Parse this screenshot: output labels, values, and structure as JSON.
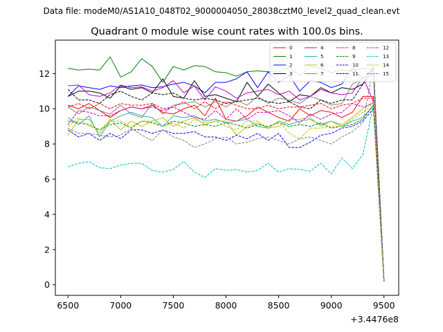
{
  "figure": {
    "suptitle": "Data file: modeM0/AS1A10_048T02_9000004050_28038cztM0_level2_quad_clean.evt"
  },
  "chart_data": {
    "type": "line",
    "title": "Quadrant 0 module wise count rates with 100.0s bins.",
    "xlabel": "",
    "ylabel": "",
    "x_offset_label": "+3.4476e8",
    "x": [
      6500,
      6600,
      6700,
      6800,
      6900,
      7000,
      7100,
      7200,
      7300,
      7400,
      7500,
      7600,
      7700,
      7800,
      7900,
      8000,
      8100,
      8200,
      8300,
      8400,
      8500,
      8600,
      8700,
      8800,
      8900,
      9000,
      9100,
      9200,
      9300,
      9400,
      9500
    ],
    "xlim": [
      6380,
      9640
    ],
    "ylim": [
      -0.6,
      13.9
    ],
    "xticks": [
      6500,
      7000,
      7500,
      8000,
      8500,
      9000,
      9500
    ],
    "yticks": [
      0,
      2,
      4,
      6,
      8,
      10,
      12
    ],
    "grid": false,
    "legend_position": "top-right",
    "series": [
      {
        "name": "0",
        "color": "#ff0000",
        "style": "solid",
        "values": [
          10.2,
          10.0,
          10.3,
          9.9,
          9.5,
          9.9,
          10.1,
          10.0,
          10.2,
          9.8,
          9.7,
          10.0,
          10.2,
          9.6,
          10.6,
          9.4,
          9.3,
          9.6,
          10.1,
          9.8,
          9.5,
          9.3,
          10.0,
          9.6,
          9.9,
          9.8,
          9.5,
          9.8,
          10.7,
          10.7,
          0.2
        ]
      },
      {
        "name": "1",
        "color": "#008000",
        "style": "solid",
        "values": [
          12.3,
          12.2,
          12.25,
          12.2,
          12.95,
          11.8,
          12.1,
          12.85,
          12.4,
          11.5,
          12.4,
          12.2,
          12.45,
          12.4,
          12.1,
          12.05,
          11.85,
          12.1,
          12.15,
          12.1,
          12.1,
          12.35,
          11.9,
          12.4,
          12.3,
          12.05,
          12.2,
          12.15,
          12.3,
          12.2,
          0.2
        ]
      },
      {
        "name": "2",
        "color": "#0000ff",
        "style": "solid",
        "values": [
          10.7,
          11.3,
          11.2,
          11.1,
          11.3,
          11.2,
          11.3,
          11.35,
          11.2,
          11.25,
          11.4,
          11.5,
          11.3,
          10.9,
          11.5,
          11.5,
          11.7,
          12.1,
          11.2,
          12.1,
          11.5,
          11.9,
          11.0,
          11.6,
          11.5,
          11.2,
          11.4,
          12.3,
          11.7,
          12.3,
          0.3
        ]
      },
      {
        "name": "3",
        "color": "#000000",
        "style": "solid",
        "values": [
          10.7,
          11.0,
          11.0,
          10.9,
          10.6,
          11.3,
          11.1,
          11.2,
          10.9,
          11.7,
          10.7,
          10.6,
          11.6,
          10.7,
          10.8,
          10.6,
          10.4,
          11.5,
          10.7,
          11.4,
          10.9,
          10.4,
          10.8,
          10.7,
          11.2,
          10.9,
          11.2,
          11.1,
          11.4,
          12.4,
          0.3
        ]
      },
      {
        "name": "4",
        "color": "#bf00bf",
        "style": "solid",
        "values": [
          11.3,
          11.35,
          10.8,
          10.7,
          10.9,
          11.35,
          11.2,
          11.25,
          11.0,
          11.2,
          11.6,
          10.9,
          11.3,
          10.5,
          11.25,
          11.0,
          10.6,
          10.9,
          11.0,
          11.1,
          10.8,
          11.0,
          10.5,
          10.7,
          11.1,
          10.9,
          10.8,
          10.9,
          11.8,
          10.4,
          0.3
        ]
      },
      {
        "name": "5",
        "color": "#20b2aa",
        "style": "solid",
        "values": [
          9.5,
          9.1,
          9.6,
          8.4,
          9.3,
          9.6,
          9.8,
          9.6,
          9.5,
          9.0,
          9.6,
          9.5,
          9.6,
          9.3,
          9.4,
          9.2,
          9.3,
          9.4,
          9.0,
          8.9,
          9.3,
          9.1,
          9.3,
          9.4,
          9.1,
          9.3,
          9.0,
          9.3,
          9.5,
          10.2,
          0.3
        ]
      },
      {
        "name": "6",
        "color": "#bfbf00",
        "style": "solid",
        "values": [
          8.5,
          9.4,
          9.4,
          8.6,
          9.4,
          8.8,
          9.3,
          9.0,
          9.3,
          9.5,
          9.0,
          9.3,
          9.5,
          9.1,
          9.3,
          9.3,
          8.5,
          9.0,
          9.2,
          8.9,
          9.0,
          9.4,
          9.4,
          9.5,
          9.0,
          9.3,
          9.1,
          9.5,
          10.0,
          10.4,
          0.3
        ]
      },
      {
        "name": "7",
        "color": "#808080",
        "style": "solid",
        "values": [
          10.1,
          9.7,
          10.1,
          9.9,
          9.7,
          10.2,
          9.7,
          9.5,
          10.3,
          9.7,
          10.2,
          10.3,
          10.4,
          10.1,
          10.4,
          10.1,
          10.5,
          10.2,
          10.7,
          10.3,
          10.6,
          10.5,
          10.3,
          10.7,
          10.5,
          10.2,
          10.3,
          11.4,
          11.7,
          12.2,
          0.3
        ]
      },
      {
        "name": "8",
        "color": "#ff0000",
        "style": "dashed",
        "values": [
          10.1,
          10.3,
          10.0,
          10.3,
          10.0,
          10.3,
          10.2,
          10.2,
          10.3,
          10.0,
          10.1,
          10.4,
          10.0,
          10.4,
          10.0,
          10.4,
          10.2,
          10.0,
          10.0,
          10.2,
          10.0,
          10.1,
          10.1,
          10.2,
          10.3,
          10.0,
          10.2,
          10.3,
          10.6,
          10.6,
          0.2
        ]
      },
      {
        "name": "9",
        "color": "#008000",
        "style": "dashed",
        "values": [
          9.3,
          9.2,
          9.1,
          8.8,
          9.1,
          9.2,
          8.9,
          9.3,
          9.2,
          9.0,
          9.3,
          9.2,
          9.0,
          9.1,
          9.0,
          9.2,
          9.1,
          8.9,
          9.1,
          9.0,
          9.2,
          9.0,
          9.1,
          9.0,
          9.2,
          8.9,
          9.0,
          9.1,
          9.4,
          10.2,
          0.2
        ]
      },
      {
        "name": "10",
        "color": "#0000ff",
        "style": "dashed",
        "values": [
          8.8,
          8.4,
          8.6,
          8.2,
          8.6,
          8.3,
          8.8,
          8.8,
          8.6,
          8.8,
          8.6,
          8.6,
          8.7,
          8.4,
          8.4,
          8.2,
          8.5,
          8.3,
          8.6,
          8.2,
          8.6,
          7.8,
          7.8,
          8.1,
          8.5,
          8.6,
          8.9,
          9.0,
          9.3,
          10.0,
          0.2
        ]
      },
      {
        "name": "11",
        "color": "#000000",
        "style": "dashed",
        "values": [
          11.1,
          10.5,
          10.5,
          10.3,
          10.8,
          11.0,
          10.7,
          10.5,
          10.9,
          10.8,
          10.9,
          10.6,
          10.5,
          10.6,
          10.5,
          10.3,
          10.4,
          10.5,
          10.6,
          10.4,
          10.3,
          10.4,
          10.1,
          10.0,
          10.5,
          10.3,
          10.5,
          10.5,
          11.4,
          12.1,
          0.2
        ]
      },
      {
        "name": "12",
        "color": "#bf00bf",
        "style": "dashed",
        "values": [
          9.1,
          9.9,
          9.8,
          9.6,
          9.6,
          9.9,
          10.1,
          10.0,
          10.1,
          9.9,
          10.1,
          9.8,
          9.5,
          9.4,
          9.9,
          9.4,
          10.0,
          9.4,
          9.8,
          9.8,
          9.9,
          9.6,
          9.2,
          9.7,
          9.4,
          9.7,
          9.8,
          10.3,
          10.1,
          10.3,
          0.2
        ]
      },
      {
        "name": "13",
        "color": "#00bfbf",
        "style": "dashed",
        "values": [
          6.7,
          6.9,
          7.0,
          6.65,
          6.6,
          6.8,
          6.9,
          6.9,
          6.5,
          6.4,
          6.55,
          7.0,
          6.4,
          6.1,
          6.6,
          6.5,
          6.55,
          6.4,
          6.5,
          6.9,
          6.4,
          6.6,
          6.55,
          6.45,
          6.9,
          6.3,
          7.2,
          6.6,
          7.4,
          10.2,
          0.2
        ]
      },
      {
        "name": "14",
        "color": "#bfbf00",
        "style": "dashed",
        "values": [
          9.0,
          9.5,
          9.0,
          8.8,
          9.3,
          9.3,
          9.0,
          9.3,
          9.3,
          9.0,
          9.2,
          8.9,
          9.4,
          9.2,
          9.3,
          9.0,
          8.8,
          9.3,
          9.3,
          8.9,
          9.3,
          8.6,
          8.3,
          8.9,
          8.9,
          9.0,
          9.0,
          9.4,
          9.8,
          10.3,
          0.2
        ]
      },
      {
        "name": "15",
        "color": "#808080",
        "style": "dashed",
        "values": [
          8.9,
          8.6,
          8.6,
          8.5,
          8.4,
          8.5,
          8.9,
          8.5,
          8.2,
          8.8,
          8.4,
          8.2,
          7.8,
          8.0,
          8.3,
          8.4,
          8.0,
          8.1,
          8.3,
          8.4,
          8.2,
          8.0,
          8.3,
          8.4,
          8.2,
          8.0,
          8.4,
          8.7,
          9.2,
          12.4,
          0.3
        ]
      }
    ]
  }
}
